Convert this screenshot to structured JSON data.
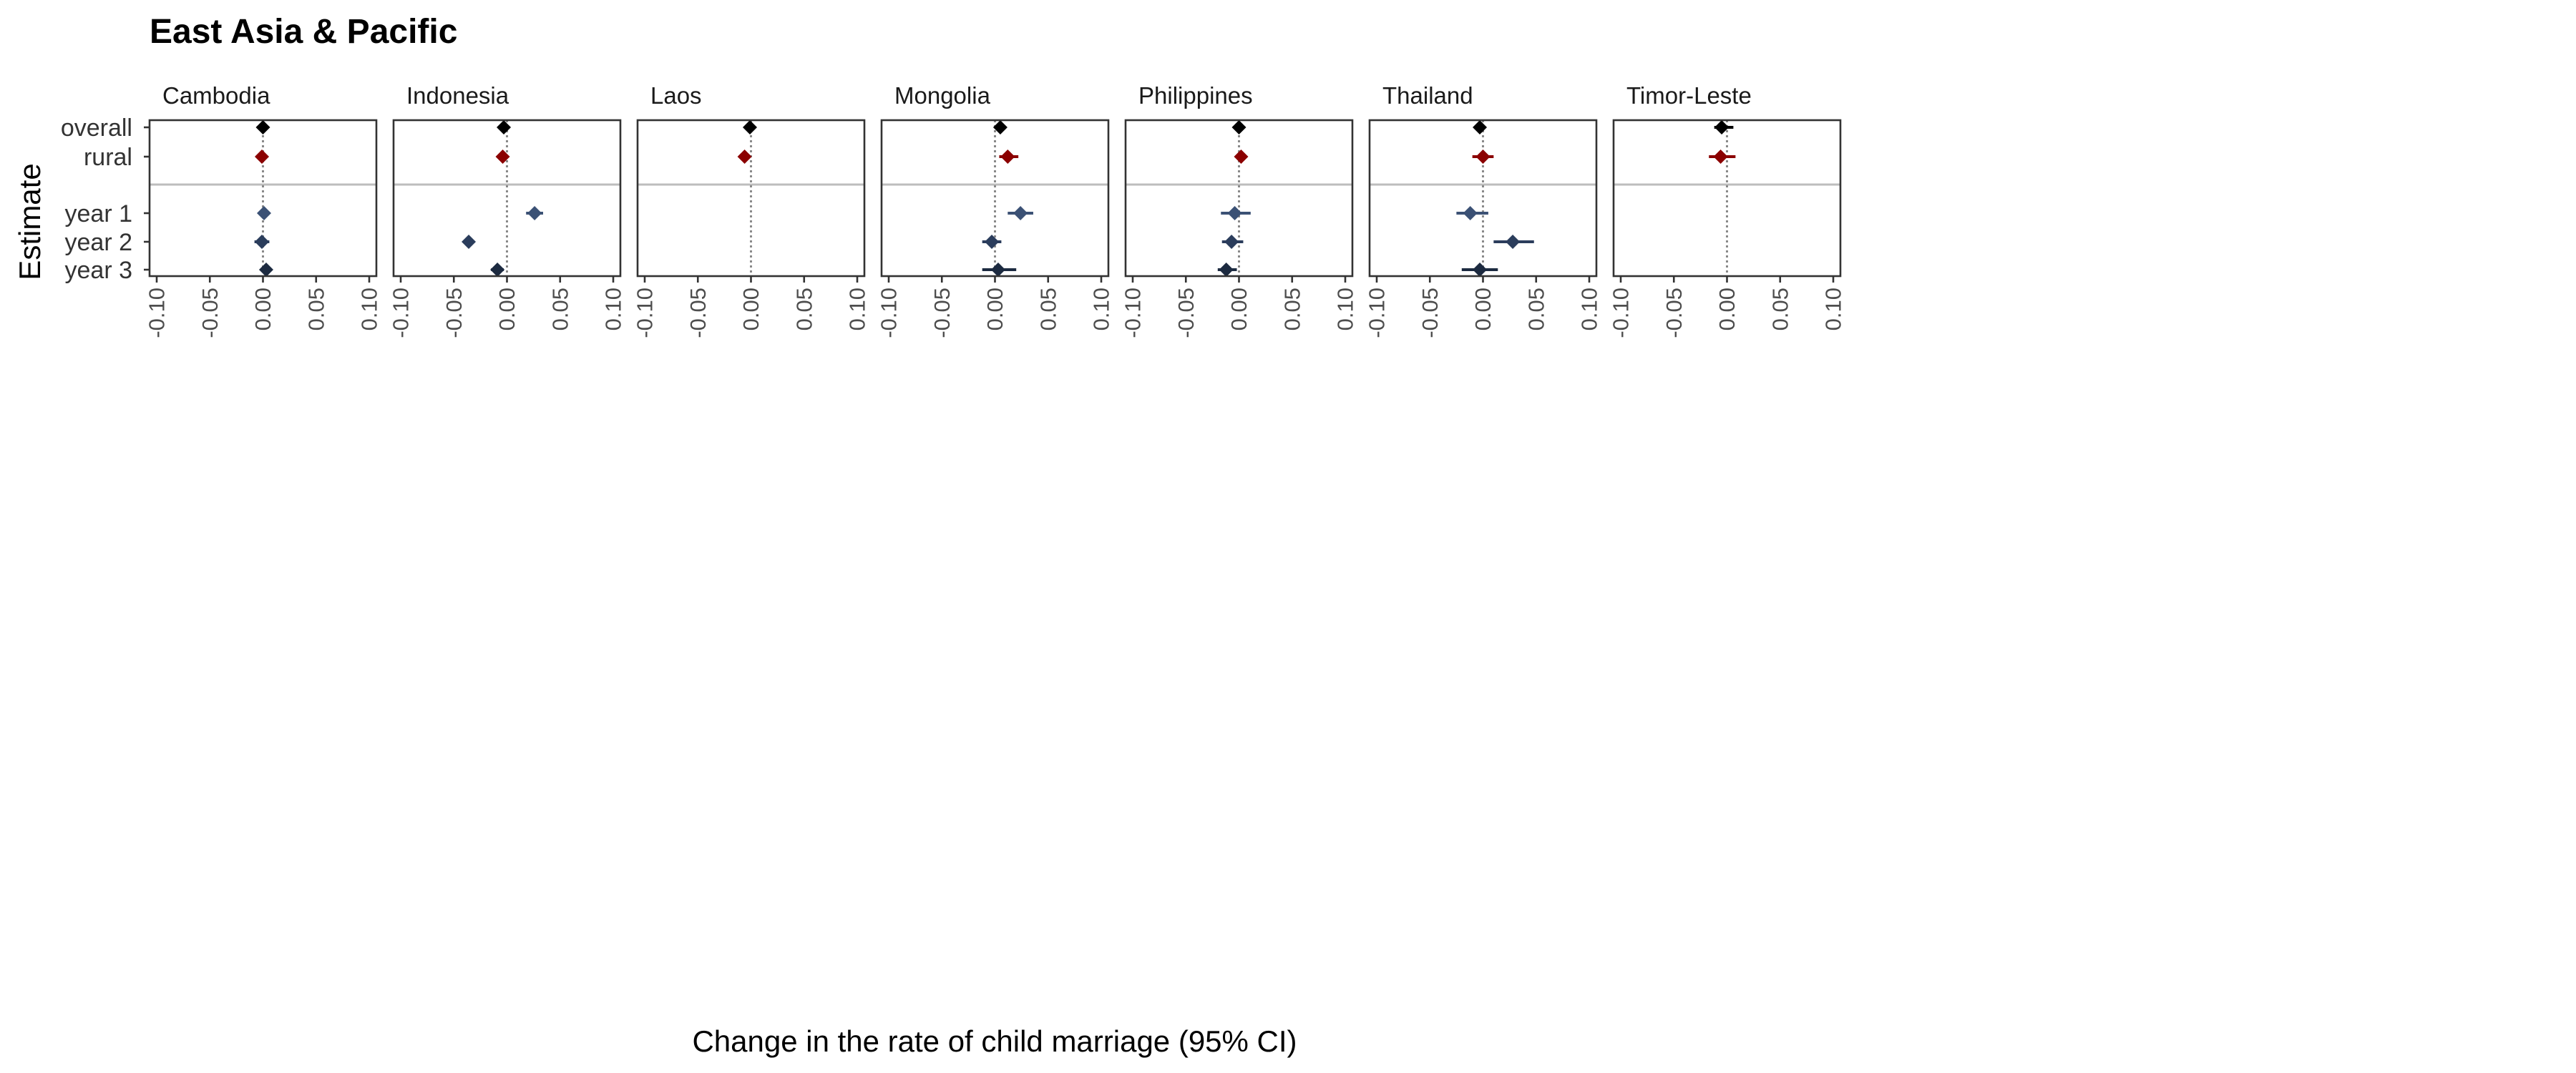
{
  "chart_data": {
    "type": "scatter",
    "title": "East Asia & Pacific",
    "xlabel": "Change in the rate of child marriage (95% CI)",
    "ylabel": "Estimate",
    "xlim": [
      -0.1,
      0.1
    ],
    "x_ticks": [
      -0.1,
      -0.05,
      0.0,
      0.05,
      0.1
    ],
    "x_tick_labels": [
      "-0.10",
      "-0.05",
      "0.00",
      "0.05",
      "0.10"
    ],
    "rows": [
      "overall",
      "rural",
      "year 1",
      "year 2",
      "year 3"
    ],
    "colors": {
      "overall": "#000000",
      "rural": "#8b0000",
      "year 1": "#3b5175",
      "year 2": "#2b3d5c",
      "year 3": "#1c2a40"
    },
    "panels": [
      {
        "name": "Cambodia",
        "estimates": [
          {
            "row": "overall",
            "x": 0.0,
            "lo": -0.003,
            "hi": 0.003
          },
          {
            "row": "rural",
            "x": -0.001,
            "lo": -0.004,
            "hi": 0.002
          },
          {
            "row": "year 1",
            "x": 0.001,
            "lo": -0.002,
            "hi": 0.004
          },
          {
            "row": "year 2",
            "x": -0.001,
            "lo": -0.008,
            "hi": 0.006
          },
          {
            "row": "year 3",
            "x": 0.003,
            "lo": -0.001,
            "hi": 0.007
          }
        ]
      },
      {
        "name": "Indonesia",
        "estimates": [
          {
            "row": "overall",
            "x": -0.003,
            "lo": -0.007,
            "hi": 0.001
          },
          {
            "row": "rural",
            "x": -0.004,
            "lo": -0.008,
            "hi": 0.0
          },
          {
            "row": "year 1",
            "x": 0.026,
            "lo": 0.018,
            "hi": 0.034
          },
          {
            "row": "year 2",
            "x": -0.036,
            "lo": -0.04,
            "hi": -0.032
          },
          {
            "row": "year 3",
            "x": -0.009,
            "lo": -0.015,
            "hi": -0.003
          }
        ]
      },
      {
        "name": "Laos",
        "estimates": [
          {
            "row": "overall",
            "x": -0.001,
            "lo": -0.006,
            "hi": 0.004
          },
          {
            "row": "rural",
            "x": -0.006,
            "lo": -0.011,
            "hi": -0.001
          }
        ]
      },
      {
        "name": "Mongolia",
        "estimates": [
          {
            "row": "overall",
            "x": 0.005,
            "lo": 0.0,
            "hi": 0.01
          },
          {
            "row": "rural",
            "x": 0.012,
            "lo": 0.004,
            "hi": 0.022
          },
          {
            "row": "year 1",
            "x": 0.024,
            "lo": 0.012,
            "hi": 0.036
          },
          {
            "row": "year 2",
            "x": -0.003,
            "lo": -0.012,
            "hi": 0.006
          },
          {
            "row": "year 3",
            "x": 0.003,
            "lo": -0.012,
            "hi": 0.02
          }
        ]
      },
      {
        "name": "Philippines",
        "estimates": [
          {
            "row": "overall",
            "x": 0.0,
            "lo": -0.004,
            "hi": 0.004
          },
          {
            "row": "rural",
            "x": 0.002,
            "lo": -0.002,
            "hi": 0.006
          },
          {
            "row": "year 1",
            "x": -0.004,
            "lo": -0.017,
            "hi": 0.011
          },
          {
            "row": "year 2",
            "x": -0.007,
            "lo": -0.016,
            "hi": 0.004
          },
          {
            "row": "year 3",
            "x": -0.012,
            "lo": -0.02,
            "hi": -0.002
          }
        ]
      },
      {
        "name": "Thailand",
        "estimates": [
          {
            "row": "overall",
            "x": -0.003,
            "lo": -0.008,
            "hi": 0.002
          },
          {
            "row": "rural",
            "x": 0.0,
            "lo": -0.01,
            "hi": 0.01
          },
          {
            "row": "year 1",
            "x": -0.012,
            "lo": -0.025,
            "hi": 0.005
          },
          {
            "row": "year 2",
            "x": 0.028,
            "lo": 0.01,
            "hi": 0.048
          },
          {
            "row": "year 3",
            "x": -0.003,
            "lo": -0.02,
            "hi": 0.014
          }
        ]
      },
      {
        "name": "Timor-Leste",
        "estimates": [
          {
            "row": "overall",
            "x": -0.005,
            "lo": -0.012,
            "hi": 0.006
          },
          {
            "row": "rural",
            "x": -0.006,
            "lo": -0.017,
            "hi": 0.008
          }
        ]
      }
    ],
    "grid": false,
    "legend": "none"
  }
}
